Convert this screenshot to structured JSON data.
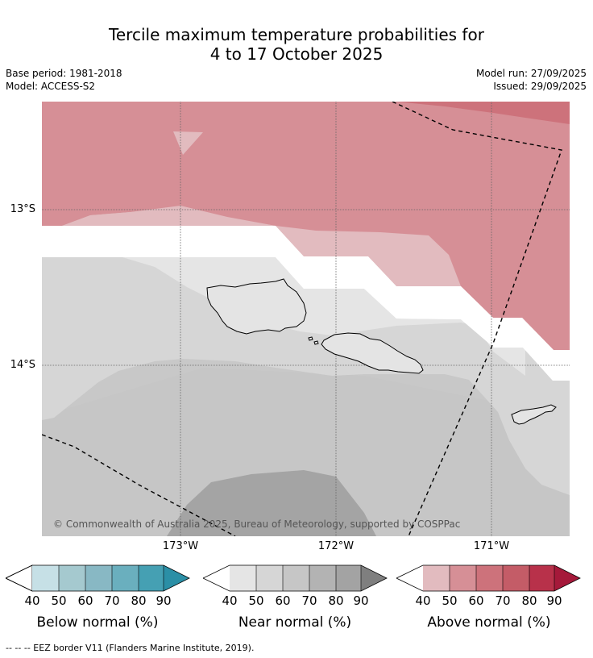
{
  "title_line1": "Tercile maximum temperature probabilities for",
  "title_line2": "4 to 17 October 2025",
  "meta": {
    "base_period": "Base period: 1981-2018",
    "model": "Model: ACCESS-S2",
    "model_run": "Model run: 27/09/2025",
    "issued": "Issued: 29/09/2025"
  },
  "map": {
    "lat_labels": [
      "13°S",
      "14°S"
    ],
    "lon_labels": [
      "173°W",
      "172°W",
      "171°W"
    ],
    "copyright": "© Commonwealth of Australia 2025, Bureau of Meteorology, supported by COSPPac",
    "eez_line": "dashed"
  },
  "legends": [
    {
      "name": "Below normal (%)",
      "ticks": [
        "40",
        "50",
        "60",
        "70",
        "80",
        "90"
      ],
      "colors": [
        "#c6e0e6",
        "#a5c9cf",
        "#88b8c4",
        "#6aafbe",
        "#45a0b3",
        "#2b8fa6"
      ]
    },
    {
      "name": "Near normal (%)",
      "ticks": [
        "40",
        "50",
        "60",
        "70",
        "80",
        "90"
      ],
      "colors": [
        "#e5e5e5",
        "#d6d6d6",
        "#c6c6c6",
        "#b3b3b3",
        "#a3a3a3",
        "#7f7f7f"
      ]
    },
    {
      "name": "Above normal (%)",
      "ticks": [
        "40",
        "50",
        "60",
        "70",
        "80",
        "90"
      ],
      "colors": [
        "#e2bbbf",
        "#d68f96",
        "#cd727b",
        "#c45c67",
        "#b8314a",
        "#a5193a"
      ]
    }
  ],
  "footer": "-- -- -- EEZ border V11 (Flanders Marine Institute, 2019)."
}
